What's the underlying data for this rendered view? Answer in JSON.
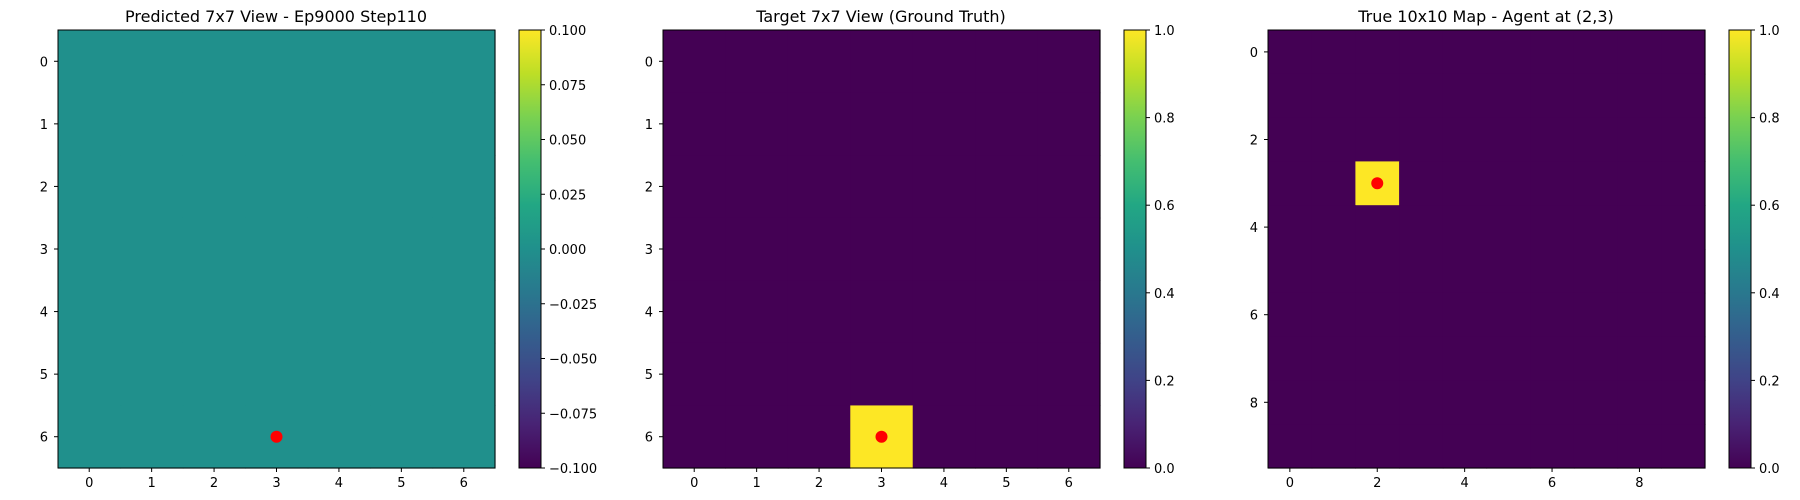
{
  "chart_data": [
    {
      "type": "heatmap",
      "title": "Predicted 7x7 View - Ep9000 Step110",
      "rows": 7,
      "cols": 7,
      "values": [
        [
          0,
          0,
          0,
          0,
          0,
          0,
          0
        ],
        [
          0,
          0,
          0,
          0,
          0,
          0,
          0
        ],
        [
          0,
          0,
          0,
          0,
          0,
          0,
          0
        ],
        [
          0,
          0,
          0,
          0,
          0,
          0,
          0
        ],
        [
          0,
          0,
          0,
          0,
          0,
          0,
          0
        ],
        [
          0,
          0,
          0,
          0,
          0,
          0,
          0
        ],
        [
          0,
          0,
          0,
          0,
          0,
          0,
          0
        ]
      ],
      "xticks": [
        0,
        1,
        2,
        3,
        4,
        5,
        6
      ],
      "yticks": [
        0,
        1,
        2,
        3,
        4,
        5,
        6
      ],
      "agent_marker": {
        "x": 3,
        "y": 6
      },
      "colorbar": {
        "vmin": -0.1,
        "vmax": 0.1,
        "ticks": [
          -0.1,
          -0.075,
          -0.05,
          -0.025,
          0,
          0.025,
          0.05,
          0.075,
          0.1
        ],
        "tick_labels": [
          "−0.100",
          "−0.075",
          "−0.050",
          "−0.025",
          "0.000",
          "0.025",
          "0.050",
          "0.075",
          "0.100"
        ]
      }
    },
    {
      "type": "heatmap",
      "title": "Target 7x7 View (Ground Truth)",
      "rows": 7,
      "cols": 7,
      "values": [
        [
          0,
          0,
          0,
          0,
          0,
          0,
          0
        ],
        [
          0,
          0,
          0,
          0,
          0,
          0,
          0
        ],
        [
          0,
          0,
          0,
          0,
          0,
          0,
          0
        ],
        [
          0,
          0,
          0,
          0,
          0,
          0,
          0
        ],
        [
          0,
          0,
          0,
          0,
          0,
          0,
          0
        ],
        [
          0,
          0,
          0,
          0,
          0,
          0,
          0
        ],
        [
          0,
          0,
          0,
          1,
          0,
          0,
          0
        ]
      ],
      "xticks": [
        0,
        1,
        2,
        3,
        4,
        5,
        6
      ],
      "yticks": [
        0,
        1,
        2,
        3,
        4,
        5,
        6
      ],
      "agent_marker": {
        "x": 3,
        "y": 6
      },
      "colorbar": {
        "vmin": 0,
        "vmax": 1,
        "ticks": [
          0,
          0.2,
          0.4,
          0.6,
          0.8,
          1
        ],
        "tick_labels": [
          "0.0",
          "0.2",
          "0.4",
          "0.6",
          "0.8",
          "1.0"
        ]
      }
    },
    {
      "type": "heatmap",
      "title": "True 10x10 Map - Agent at (2,3)",
      "rows": 10,
      "cols": 10,
      "values": [
        [
          0,
          0,
          0,
          0,
          0,
          0,
          0,
          0,
          0,
          0
        ],
        [
          0,
          0,
          0,
          0,
          0,
          0,
          0,
          0,
          0,
          0
        ],
        [
          0,
          0,
          0,
          0,
          0,
          0,
          0,
          0,
          0,
          0
        ],
        [
          0,
          0,
          1,
          0,
          0,
          0,
          0,
          0,
          0,
          0
        ],
        [
          0,
          0,
          0,
          0,
          0,
          0,
          0,
          0,
          0,
          0
        ],
        [
          0,
          0,
          0,
          0,
          0,
          0,
          0,
          0,
          0,
          0
        ],
        [
          0,
          0,
          0,
          0,
          0,
          0,
          0,
          0,
          0,
          0
        ],
        [
          0,
          0,
          0,
          0,
          0,
          0,
          0,
          0,
          0,
          0
        ],
        [
          0,
          0,
          0,
          0,
          0,
          0,
          0,
          0,
          0,
          0
        ],
        [
          0,
          0,
          0,
          0,
          0,
          0,
          0,
          0,
          0,
          0
        ]
      ],
      "xticks": [
        0,
        2,
        4,
        6,
        8
      ],
      "yticks": [
        0,
        2,
        4,
        6,
        8
      ],
      "agent_marker": {
        "x": 2,
        "y": 3
      },
      "colorbar": {
        "vmin": 0,
        "vmax": 1,
        "ticks": [
          0,
          0.2,
          0.4,
          0.6,
          0.8,
          1
        ],
        "tick_labels": [
          "0.0",
          "0.2",
          "0.4",
          "0.6",
          "0.8",
          "1.0"
        ]
      }
    }
  ],
  "colors": {
    "marker": "#ff0000",
    "colormap": "viridis"
  }
}
